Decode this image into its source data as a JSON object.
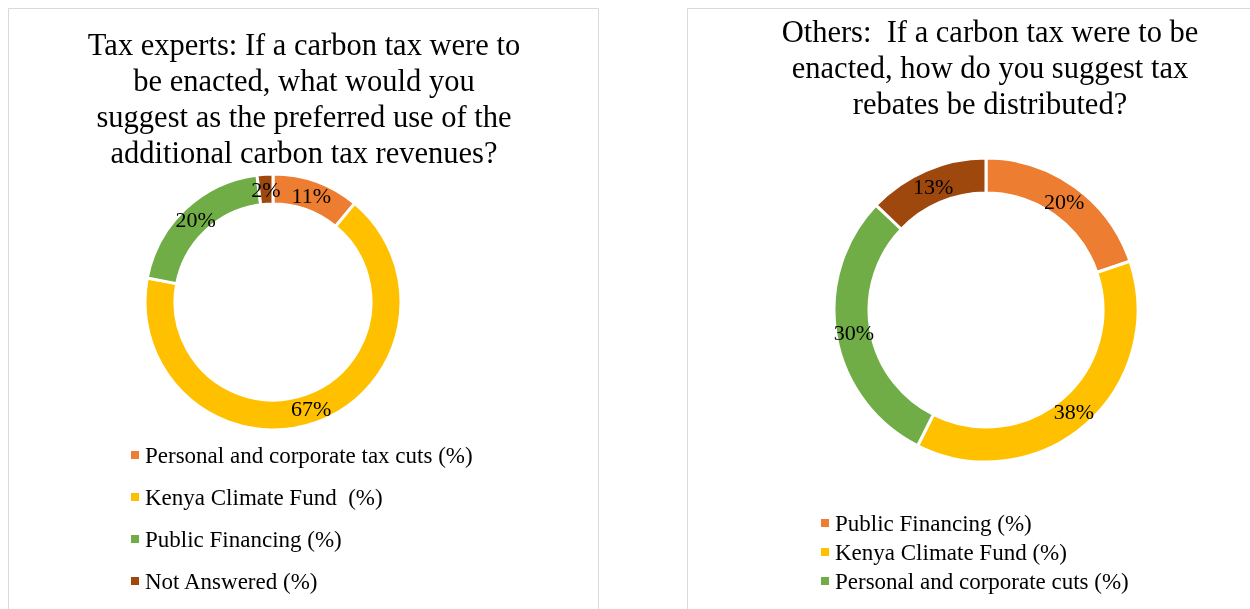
{
  "chart_data": [
    {
      "type": "donut",
      "title": "Tax experts: If a carbon tax were to\nbe enacted, what would you\nsuggest as the preferred use of the\nadditional carbon tax revenues?",
      "categories": [
        "Personal and corporate tax cuts (%)",
        "Kenya Climate Fund  (%)",
        "Public Financing (%)",
        "Not Answered (%)"
      ],
      "values": [
        11,
        67,
        20,
        2
      ],
      "colors": [
        "#ed7d31",
        "#ffc000",
        "#70ad47",
        "#9e480e"
      ],
      "value_labels": [
        "11%",
        "67%",
        "20%",
        "2%"
      ],
      "legend": "bottom"
    },
    {
      "type": "donut",
      "title": "Others:  If a carbon tax were to be enacted, how do you suggest tax rebates be distributed?",
      "categories": [
        "Public Financing (%)",
        "Kenya Climate Fund (%)",
        "Personal and corporate cuts (%)",
        null
      ],
      "values": [
        20,
        38,
        30,
        13
      ],
      "colors": [
        "#ed7d31",
        "#ffc000",
        "#70ad47",
        "#9e480e"
      ],
      "value_labels": [
        "20%",
        "38%",
        "30%",
        "13%"
      ],
      "legend": "bottom"
    }
  ]
}
